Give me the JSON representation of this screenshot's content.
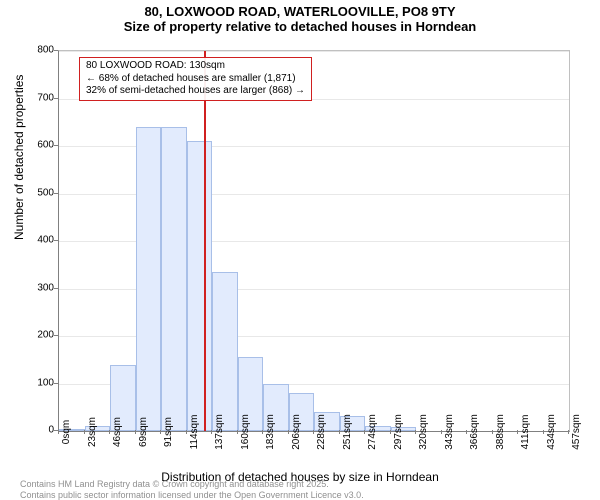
{
  "title": {
    "line1": "80, LOXWOOD ROAD, WATERLOOVILLE, PO8 9TY",
    "line2": "Size of property relative to detached houses in Horndean"
  },
  "chart": {
    "type": "histogram",
    "y_axis": {
      "label": "Number of detached properties",
      "min": 0,
      "max": 800,
      "step": 100,
      "label_fontsize": 12,
      "tick_fontsize": 10
    },
    "x_axis": {
      "label": "Distribution of detached houses by size in Horndean",
      "tick_labels": [
        "0sqm",
        "23sqm",
        "46sqm",
        "69sqm",
        "91sqm",
        "114sqm",
        "137sqm",
        "160sqm",
        "183sqm",
        "206sqm",
        "228sqm",
        "251sqm",
        "274sqm",
        "297sqm",
        "320sqm",
        "343sqm",
        "366sqm",
        "388sqm",
        "411sqm",
        "434sqm",
        "457sqm"
      ],
      "tick_count": 21,
      "label_fontsize": 12,
      "tick_fontsize": 10
    },
    "bars": {
      "values": [
        5,
        10,
        140,
        640,
        640,
        610,
        335,
        155,
        100,
        80,
        40,
        32,
        10,
        8,
        0,
        0,
        0,
        0,
        0,
        0
      ],
      "fill_color": "#e2ebfd",
      "border_color": "#a8bfe8"
    },
    "marker": {
      "position_bin": 5.7,
      "color": "#d02020"
    },
    "callout": {
      "line1": "80 LOXWOOD ROAD: 130sqm",
      "line2": "← 68% of detached houses are smaller (1,871)",
      "line3": "32% of semi-detached houses are larger (868) →",
      "border_color": "#d02020"
    },
    "grid_color": "#e8e8e8",
    "background_color": "#ffffff"
  },
  "footer": {
    "line1": "Contains HM Land Registry data © Crown copyright and database right 2025.",
    "line2": "Contains public sector information licensed under the Open Government Licence v3.0."
  }
}
